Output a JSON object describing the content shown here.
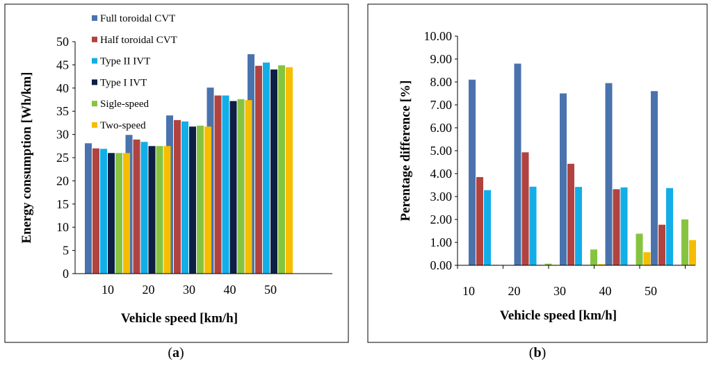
{
  "colors": {
    "full_toroidal_cvt": "#4a73ad",
    "half_toroidal_cvt": "#b0433f",
    "type_ii_ivt": "#12aee8",
    "type_i_ivt": "#0d1f44",
    "single_speed": "#86c440",
    "two_speed": "#f7bd00"
  },
  "chart_data": [
    {
      "type": "bar",
      "panel_label": "a",
      "title": "",
      "xlabel": "Vehicle speed  [km/h]",
      "ylabel": "Energy consumption [Wh/km]",
      "ylim": [
        0,
        50
      ],
      "yticks": [
        "0",
        "5",
        "10",
        "15",
        "20",
        "25",
        "30",
        "35",
        "40",
        "45",
        "50"
      ],
      "categories": [
        "10",
        "20",
        "30",
        "40",
        "50"
      ],
      "legend_position": "top-left inside",
      "series": [
        {
          "name": "Full toroidal CVT",
          "values": [
            28.1,
            29.9,
            34.1,
            40.1,
            47.3
          ]
        },
        {
          "name": "Half toroidal CVT",
          "values": [
            27.0,
            28.9,
            33.1,
            38.4,
            44.8
          ]
        },
        {
          "name": "Type II IVT",
          "values": [
            26.9,
            28.4,
            32.8,
            38.4,
            45.5
          ]
        },
        {
          "name": "Type I IVT",
          "values": [
            26.0,
            27.5,
            31.7,
            37.2,
            44.0
          ]
        },
        {
          "name": "Sigle-speed",
          "values": [
            26.0,
            27.5,
            31.9,
            37.6,
            44.9
          ]
        },
        {
          "name": "Two-speed",
          "values": [
            26.0,
            27.5,
            31.7,
            37.4,
            44.5
          ]
        }
      ]
    },
    {
      "type": "bar",
      "panel_label": "b",
      "title": "",
      "xlabel": "Vehicle speed  [km/h]",
      "ylabel": "Perentage difference [%]",
      "ylim": [
        0,
        10
      ],
      "yticks": [
        "0.00",
        "1.00",
        "2.00",
        "3.00",
        "4.00",
        "5.00",
        "6.00",
        "7.00",
        "8.00",
        "9.00",
        "10.00"
      ],
      "categories": [
        "10",
        "20",
        "30",
        "40",
        "50"
      ],
      "series": [
        {
          "name": "Full toroidal CVT",
          "values": [
            8.1,
            8.8,
            7.5,
            7.95,
            7.6
          ]
        },
        {
          "name": "Half toroidal CVT",
          "values": [
            3.85,
            4.93,
            4.43,
            3.32,
            1.77
          ]
        },
        {
          "name": "Type II IVT",
          "values": [
            3.28,
            3.43,
            3.42,
            3.4,
            3.37
          ]
        },
        {
          "name": "Type I IVT",
          "values": [
            0.0,
            0.0,
            0.0,
            0.0,
            0.0
          ]
        },
        {
          "name": "Sigle-speed",
          "values": [
            0.0,
            0.07,
            0.69,
            1.38,
            2.0
          ]
        },
        {
          "name": "Two-speed",
          "values": [
            0.0,
            0.0,
            0.05,
            0.57,
            1.1
          ]
        }
      ]
    }
  ]
}
